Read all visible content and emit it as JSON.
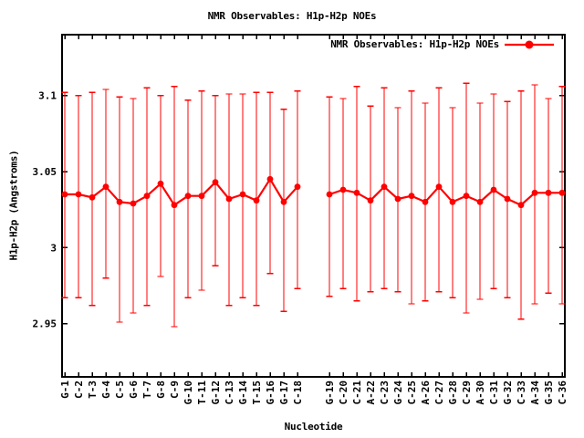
{
  "title": "NMR Observables: H1p-H2p NOEs",
  "legend": {
    "label": "NMR Observables: H1p-H2p NOEs"
  },
  "axes": {
    "x_label": "Nucleotide",
    "y_label": "H1p-H2p (Angstroms)"
  },
  "colors": {
    "series": "#ff0000",
    "axis": "#000000",
    "text": "#000000",
    "background": "#ffffff"
  },
  "chart_data": {
    "type": "line",
    "title": "NMR Observables: H1p-H2p NOEs",
    "xlabel": "Nucleotide",
    "ylabel": "H1p-H2p (Angstroms)",
    "legend_position": "top-right-inside",
    "grid": false,
    "error_bars": true,
    "marker": "filled-circle",
    "ylim": [
      2.915,
      3.14
    ],
    "y_ticks": [
      2.95,
      3,
      3.05,
      3.1
    ],
    "y_tick_labels": [
      "2.95",
      "3",
      "3.05",
      "3.1"
    ],
    "segment_break_after_index": 17,
    "categories": [
      "G-1",
      "C-2",
      "T-3",
      "G-4",
      "C-5",
      "G-6",
      "T-7",
      "G-8",
      "C-9",
      "G-10",
      "T-11",
      "G-12",
      "C-13",
      "G-14",
      "T-15",
      "G-16",
      "G-17",
      "C-18",
      "G-19",
      "C-20",
      "C-21",
      "A-22",
      "C-23",
      "G-24",
      "C-25",
      "A-26",
      "C-27",
      "G-28",
      "C-29",
      "A-30",
      "C-31",
      "G-32",
      "C-33",
      "A-34",
      "G-35",
      "C-36"
    ],
    "series": [
      {
        "name": "NMR Observables: H1p-H2p NOEs",
        "color": "#ff0000",
        "values": [
          3.035,
          3.035,
          3.033,
          3.04,
          3.03,
          3.029,
          3.034,
          3.042,
          3.028,
          3.034,
          3.034,
          3.043,
          3.032,
          3.035,
          3.031,
          3.045,
          3.03,
          3.04,
          3.035,
          3.038,
          3.036,
          3.031,
          3.04,
          3.032,
          3.034,
          3.03,
          3.04,
          3.03,
          3.034,
          3.03,
          3.038,
          3.032,
          3.028,
          3.036,
          3.036,
          3.036
        ],
        "err_hi": [
          3.102,
          3.1,
          3.102,
          3.104,
          3.099,
          3.098,
          3.105,
          3.1,
          3.106,
          3.097,
          3.103,
          3.1,
          3.101,
          3.101,
          3.102,
          3.102,
          3.091,
          3.103,
          3.099,
          3.098,
          3.106,
          3.093,
          3.105,
          3.092,
          3.103,
          3.095,
          3.105,
          3.092,
          3.108,
          3.095,
          3.101,
          3.096,
          3.103,
          3.107,
          3.098,
          3.106
        ],
        "err_lo": [
          2.967,
          2.967,
          2.962,
          2.98,
          2.951,
          2.957,
          2.962,
          2.981,
          2.948,
          2.967,
          2.972,
          2.988,
          2.962,
          2.967,
          2.962,
          2.983,
          2.958,
          2.973,
          2.968,
          2.973,
          2.965,
          2.971,
          2.973,
          2.971,
          2.963,
          2.965,
          2.971,
          2.967,
          2.957,
          2.966,
          2.973,
          2.967,
          2.953,
          2.963,
          2.97,
          2.963
        ]
      }
    ]
  }
}
